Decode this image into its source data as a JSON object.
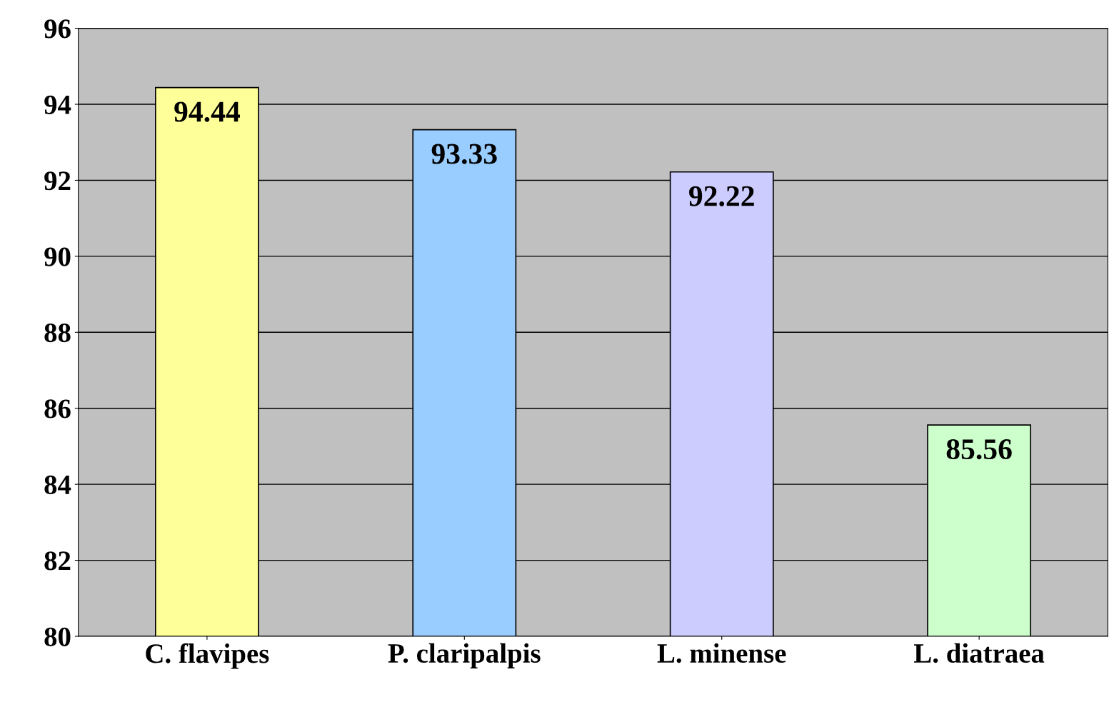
{
  "chart_data": {
    "type": "bar",
    "categories": [
      "C. flavipes",
      "P. claripalpis",
      "L. minense",
      "L. diatraea"
    ],
    "values": [
      94.44,
      93.33,
      92.22,
      85.56
    ],
    "colors": [
      "#ffff99",
      "#99ccff",
      "#ccccff",
      "#ccffcc"
    ],
    "ylim": [
      80,
      96
    ],
    "yticks": [
      80,
      82,
      84,
      86,
      88,
      90,
      92,
      94,
      96
    ],
    "grid": "y",
    "data_labels": true
  }
}
